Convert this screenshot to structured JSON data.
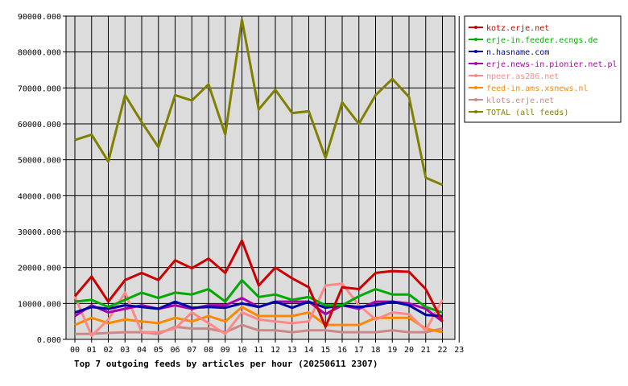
{
  "chart_data": {
    "type": "line",
    "title": "Top 7 outgoing feeds by articles per hour (20250611 2307)",
    "xlabel": "",
    "ylabel": "",
    "categories": [
      "00",
      "01",
      "02",
      "03",
      "04",
      "05",
      "06",
      "07",
      "08",
      "09",
      "10",
      "11",
      "12",
      "13",
      "14",
      "15",
      "16",
      "17",
      "18",
      "19",
      "20",
      "21",
      "22",
      "23"
    ],
    "ylim": [
      0,
      90000
    ],
    "yticks": [
      "0.000",
      "10000.000",
      "20000.000",
      "30000.000",
      "40000.000",
      "50000.000",
      "60000.000",
      "70000.000",
      "80000.000",
      "90000.000"
    ],
    "grid": true,
    "legend_position": "right",
    "series": [
      {
        "name": "kotz.erje.net",
        "color": "#cc0000",
        "values": [
          12000,
          17500,
          10500,
          16500,
          18500,
          16500,
          22000,
          19800,
          22500,
          18500,
          27500,
          15000,
          20000,
          17000,
          14500,
          3500,
          14500,
          14000,
          18500,
          19000,
          18800,
          14000,
          5000,
          null
        ]
      },
      {
        "name": "erje-in.feeder.ecngs.de",
        "color": "#00aa00",
        "values": [
          10500,
          11000,
          9000,
          11000,
          13000,
          11500,
          13000,
          12500,
          14000,
          10500,
          16500,
          11800,
          12500,
          11000,
          11800,
          9500,
          9500,
          12000,
          14000,
          12500,
          12500,
          9000,
          7500,
          null
        ]
      },
      {
        "name": "n.hasname.com",
        "color": "#0000aa",
        "values": [
          7500,
          9000,
          8500,
          9500,
          9000,
          8500,
          10500,
          8800,
          9000,
          8800,
          10000,
          9000,
          10500,
          8800,
          10500,
          8800,
          9500,
          9000,
          9500,
          10500,
          9500,
          6800,
          6500,
          null
        ]
      },
      {
        "name": "erje.news-in.pionier.net.pl",
        "color": "#aa00aa",
        "values": [
          6500,
          9500,
          7500,
          8500,
          9500,
          8500,
          9500,
          8500,
          9500,
          9500,
          11500,
          9000,
          10500,
          10500,
          10500,
          7000,
          9500,
          8500,
          10500,
          10500,
          10000,
          8500,
          5000,
          null
        ]
      },
      {
        "name": "npeer.as286.net",
        "color": "#ff8888",
        "values": [
          12000,
          1000,
          5500,
          13000,
          2000,
          2000,
          3000,
          7500,
          4500,
          1500,
          7500,
          5500,
          5000,
          4500,
          5000,
          15000,
          15500,
          9500,
          5500,
          7500,
          7000,
          2500,
          11000,
          null
        ]
      },
      {
        "name": "feed-in.ams.xsnews.nl",
        "color": "#ff8800",
        "values": [
          4000,
          6000,
          4500,
          5500,
          5000,
          4500,
          6000,
          5000,
          6500,
          5000,
          9000,
          6500,
          6500,
          6500,
          7500,
          4000,
          4000,
          4000,
          6000,
          6000,
          6000,
          3000,
          2000,
          null
        ]
      },
      {
        "name": "klots.erje.net",
        "color": "#cc8888",
        "values": [
          1500,
          1500,
          1800,
          2000,
          2000,
          1500,
          3500,
          3000,
          3000,
          2000,
          4000,
          2500,
          2500,
          2000,
          2500,
          2500,
          2000,
          2000,
          2000,
          2500,
          2000,
          2000,
          3000,
          null
        ]
      },
      {
        "name": "TOTAL (all feeds)",
        "color": "#808000",
        "values": [
          55500,
          57000,
          49500,
          68000,
          60500,
          53500,
          68000,
          66500,
          71000,
          57000,
          89000,
          64000,
          69500,
          63000,
          63500,
          50500,
          66000,
          60000,
          68000,
          72500,
          67500,
          45000,
          43000,
          null
        ]
      }
    ]
  }
}
